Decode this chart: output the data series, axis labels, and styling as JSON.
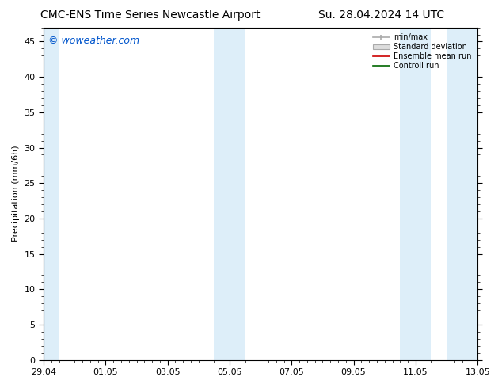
{
  "title_left": "CMC-ENS Time Series Newcastle Airport",
  "title_right": "Su. 28.04.2024 14 UTC",
  "ylabel": "Precipitation (mm/6h)",
  "watermark": "© woweather.com",
  "watermark_color": "#0055cc",
  "background_color": "#ffffff",
  "plot_bg_color": "#ffffff",
  "ylim": [
    0,
    47
  ],
  "yticks": [
    0,
    5,
    10,
    15,
    20,
    25,
    30,
    35,
    40,
    45
  ],
  "xlim": [
    0,
    336
  ],
  "xtick_positions": [
    0,
    48,
    96,
    144,
    192,
    240,
    288,
    336
  ],
  "xtick_labels": [
    "29.04",
    "01.05",
    "03.05",
    "05.05",
    "07.05",
    "09.05",
    "11.05",
    "13.05"
  ],
  "shade_bands": [
    {
      "x_start": 0,
      "x_end": 12,
      "color": "#ddeef9"
    },
    {
      "x_start": 132,
      "x_end": 156,
      "color": "#ddeef9"
    },
    {
      "x_start": 276,
      "x_end": 300,
      "color": "#ddeef9"
    },
    {
      "x_start": 312,
      "x_end": 336,
      "color": "#ddeef9"
    }
  ],
  "legend_labels": [
    "min/max",
    "Standard deviation",
    "Ensemble mean run",
    "Controll run"
  ],
  "title_fontsize": 10,
  "axis_fontsize": 8,
  "tick_fontsize": 8,
  "watermark_fontsize": 9
}
